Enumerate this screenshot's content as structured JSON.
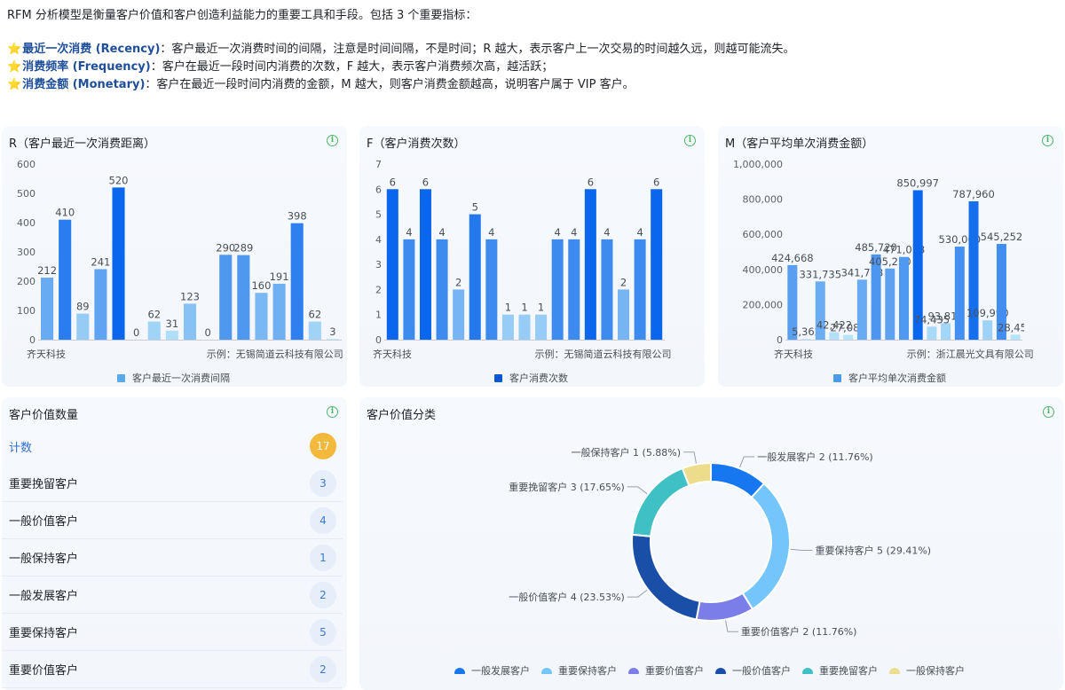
{
  "intro": {
    "line1": "RFM 分析模型是衡量客户价值和客户创造利益能力的重要工具和手段。包括 3 个重要指标：",
    "items": [
      {
        "term": "最近一次消费 (Recency)",
        "desc": "：客户最近一次消费时间的间隔，注意是时间间隔，不是时间；R 越大，表示客户上一次交易的时间越久远，则越可能流失。"
      },
      {
        "term": "消费频率 (Frequency)",
        "desc": "：客户在最近一段时间内消费的次数，F 越大，表示客户消费频次高，越活跃；"
      },
      {
        "term": "消费金额 (Monetary)",
        "desc": "：客户在最近一段时间内消费的金额，M 越大，则客户消费金额越高，说明客户属于 VIP 客户。"
      }
    ],
    "star": "⭐"
  },
  "info_glyph": "i",
  "chart_data": [
    {
      "type": "bar",
      "title": "R（客户最近一次消费距离）",
      "legend": "客户最近一次消费间隔",
      "x_tick_labels": [
        "齐天科技",
        "示例：无锡简道云科技有限公司"
      ],
      "ylim": [
        0,
        600
      ],
      "yticks": [
        "600",
        "500",
        "400",
        "300",
        "200",
        "100",
        "0"
      ],
      "values": [
        212,
        410,
        89,
        241,
        520,
        0,
        62,
        31,
        123,
        0,
        290,
        289,
        160,
        191,
        398,
        62,
        3
      ],
      "labels": [
        "212",
        "410",
        "89",
        "241",
        "520",
        "0",
        "62",
        "31",
        "123",
        "0",
        "290",
        "289",
        "160",
        "191",
        "398",
        "62",
        "3"
      ],
      "color_low": "#c2ecf8",
      "color_high": "#0a66ec"
    },
    {
      "type": "bar",
      "title": "F（客户消费次数）",
      "legend": "客户消费次数",
      "x_tick_labels": [
        "齐天科技",
        "示例：无锡简道云科技有限公司"
      ],
      "ylim": [
        0,
        7
      ],
      "yticks": [
        "7",
        "6",
        "5",
        "4",
        "3",
        "2",
        "1",
        "0"
      ],
      "values": [
        6,
        4,
        6,
        4,
        2,
        5,
        4,
        1,
        1,
        1,
        4,
        4,
        6,
        4,
        2,
        4,
        6
      ],
      "labels": [
        "6",
        "4",
        "6",
        "4",
        "2",
        "5",
        "4",
        "1",
        "1",
        "1",
        "4",
        "4",
        "6",
        "4",
        "2",
        "4",
        "6"
      ],
      "color_low": "#c2ecf8",
      "color_high": "#0a66ec"
    },
    {
      "type": "bar",
      "title": "M（客户平均单次消费金额）",
      "legend": "客户平均单次消费金额",
      "x_tick_labels": [
        "齐天科技",
        "示例：浙江晨光文具有限公司"
      ],
      "ylim": [
        0,
        1000000
      ],
      "yticks": [
        "1,000,000",
        "800,000",
        "600,000",
        "400,000",
        "200,000",
        "0"
      ],
      "values": [
        424668,
        5362,
        331735,
        42422,
        27083,
        341778,
        485720,
        405250,
        471073,
        850997,
        74435,
        93815,
        530000,
        787960,
        109990,
        545252,
        28450
      ],
      "labels": [
        "424,668",
        "5,362",
        "331,735",
        "42,422",
        "27,083",
        "341,778",
        "485,720",
        "405,250",
        "471,073",
        "850,997",
        "74,435",
        "93,815",
        "530,000",
        "787,960",
        "109,990",
        "545,252",
        "28,450"
      ],
      "color_low": "#c2ecf8",
      "color_high": "#0a66ec"
    },
    {
      "type": "pie",
      "title": "客户价值分类",
      "slices": [
        {
          "name": "一般发展客户",
          "value": 2,
          "label": "一般发展客户 2 (11.76%)",
          "color": "#1677f0"
        },
        {
          "name": "重要保持客户",
          "value": 5,
          "label": "重要保持客户 5 (29.41%)",
          "color": "#74c6fa"
        },
        {
          "name": "重要价值客户",
          "value": 2,
          "label": "重要价值客户 2 (11.76%)",
          "color": "#7b7ee8"
        },
        {
          "name": "一般价值客户",
          "value": 4,
          "label": "一般价值客户 4 (23.53%)",
          "color": "#1a4fa8"
        },
        {
          "name": "重要挽留客户",
          "value": 3,
          "label": "重要挽留客户 3 (17.65%)",
          "color": "#3ec0c4"
        },
        {
          "name": "一般保持客户",
          "value": 1,
          "label": "一般保持客户 1 (5.88%)",
          "color": "#ecdc8c"
        }
      ]
    }
  ],
  "count_card": {
    "title": "客户价值数量",
    "rows": [
      {
        "label": "计数",
        "value": "17"
      },
      {
        "label": "重要挽留客户",
        "value": "3"
      },
      {
        "label": "一般价值客户",
        "value": "4"
      },
      {
        "label": "一般保持客户",
        "value": "1"
      },
      {
        "label": "一般发展客户",
        "value": "2"
      },
      {
        "label": "重要保持客户",
        "value": "5"
      },
      {
        "label": "重要价值客户",
        "value": "2"
      }
    ]
  }
}
